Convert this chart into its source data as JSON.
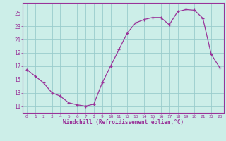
{
  "x": [
    0,
    1,
    2,
    3,
    4,
    5,
    6,
    7,
    8,
    9,
    10,
    11,
    12,
    13,
    14,
    15,
    16,
    17,
    18,
    19,
    20,
    21,
    22,
    23
  ],
  "y": [
    16.5,
    15.5,
    14.5,
    13.0,
    12.5,
    11.5,
    11.2,
    11.0,
    11.3,
    14.5,
    17.0,
    19.5,
    22.0,
    23.5,
    24.0,
    24.3,
    24.3,
    23.2,
    25.2,
    25.5,
    25.4,
    24.2,
    18.8,
    16.8
  ],
  "xlim": [
    -0.5,
    23.5
  ],
  "ylim": [
    10.0,
    26.5
  ],
  "yticks": [
    11,
    13,
    15,
    17,
    19,
    21,
    23,
    25
  ],
  "xticks": [
    0,
    1,
    2,
    3,
    4,
    5,
    6,
    7,
    8,
    9,
    10,
    11,
    12,
    13,
    14,
    15,
    16,
    17,
    18,
    19,
    20,
    21,
    22,
    23
  ],
  "xlabel": "Windchill (Refroidissement éolien,°C)",
  "line_color": "#993399",
  "marker_color": "#993399",
  "bg_color": "#cceee8",
  "grid_color": "#99cccc",
  "spine_color": "#993399",
  "tick_color": "#993399",
  "label_color": "#993399",
  "figsize": [
    3.2,
    2.0
  ],
  "dpi": 100
}
